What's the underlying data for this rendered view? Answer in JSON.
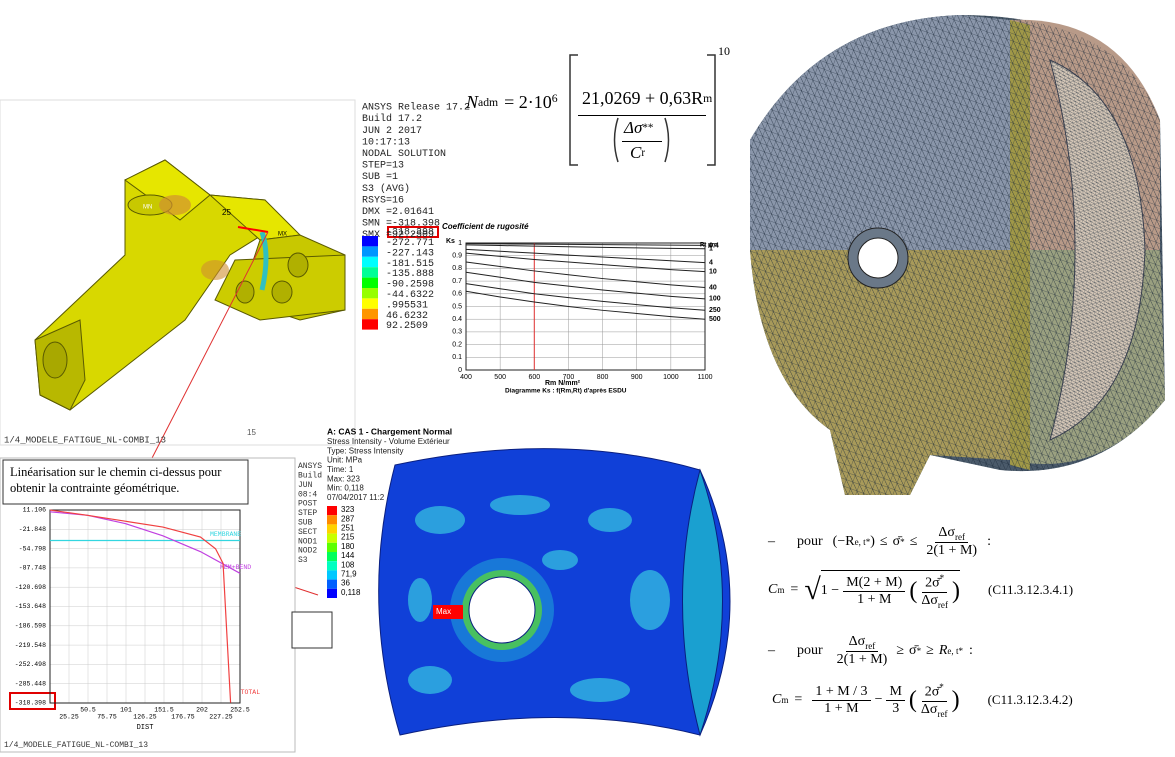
{
  "ansys_plot": {
    "info_lines": [
      "ANSYS Release 17.2",
      "Build 17.2",
      "JUN  2 2017",
      "10:17:13",
      "NODAL SOLUTION",
      "STEP=13",
      "SUB =1",
      "S3       (AVG)",
      "RSYS=16",
      "DMX =2.01641",
      "SMN =-318.398",
      "SMX =92.2509"
    ],
    "legend_colors": [
      "#0000ff",
      "#0096ff",
      "#00ffff",
      "#00ff96",
      "#00ff00",
      "#96ff00",
      "#ffff00",
      "#ff9600",
      "#ff0000"
    ],
    "legend_labels": [
      "-318.398",
      "-272.771",
      "-227.143",
      "-181.515",
      "-135.888",
      "-90.2598",
      "-44.6322",
      ".995531",
      "46.6232",
      "92.2509"
    ],
    "model_labels": [
      "25",
      "MN",
      "MX"
    ],
    "footer": "1/4_MODELE_FATIGUE_NL-COMBI_13",
    "corner_mark": "15"
  },
  "formula_top": {
    "n": "N",
    "n_sub": "adm",
    "eq": "= 2·10",
    "exp": "6",
    "num": "21,0269 + 0,63R",
    "num_sub": "m",
    "den_top": "Δσ",
    "den_sup": "**",
    "den_bottom": "C",
    "den_sub": "r",
    "power": "10"
  },
  "chart_data": [
    {
      "type": "line",
      "title": "Coefficient de rugosité",
      "y_label": "Ks",
      "x_label": "Rm   N/mm²",
      "caption": "Diagramme Ks : f(Rm,Rt) d'après ESDU",
      "legend_title": "Rt μm",
      "x": [
        400,
        500,
        600,
        700,
        800,
        900,
        1000,
        1100
      ],
      "xlim": [
        400,
        1100
      ],
      "xticks": [
        400,
        500,
        600,
        700,
        800,
        900,
        1000,
        1100
      ],
      "ylim": [
        0,
        1
      ],
      "yticks": [
        0,
        0.1,
        0.2,
        0.3,
        0.4,
        0.5,
        0.6,
        0.7,
        0.8,
        0.9,
        1
      ],
      "grid": true,
      "marker_x": 600,
      "marker_color": "#e03030",
      "series": [
        {
          "name": "0.4",
          "color": "#222222",
          "values": [
            0.995,
            0.993,
            0.991,
            0.989,
            0.987,
            0.985,
            0.983,
            0.981
          ]
        },
        {
          "name": "1",
          "color": "#222222",
          "values": [
            0.985,
            0.98,
            0.975,
            0.97,
            0.966,
            0.962,
            0.958,
            0.955
          ]
        },
        {
          "name": "4",
          "color": "#222222",
          "values": [
            0.95,
            0.935,
            0.92,
            0.905,
            0.89,
            0.875,
            0.86,
            0.845
          ]
        },
        {
          "name": "10",
          "color": "#222222",
          "values": [
            0.92,
            0.895,
            0.87,
            0.85,
            0.83,
            0.81,
            0.79,
            0.775
          ]
        },
        {
          "name": "40",
          "color": "#222222",
          "values": [
            0.85,
            0.815,
            0.78,
            0.75,
            0.72,
            0.695,
            0.67,
            0.65
          ]
        },
        {
          "name": "100",
          "color": "#222222",
          "values": [
            0.77,
            0.73,
            0.69,
            0.66,
            0.63,
            0.605,
            0.58,
            0.56
          ]
        },
        {
          "name": "250",
          "color": "#222222",
          "values": [
            0.68,
            0.64,
            0.6,
            0.57,
            0.54,
            0.515,
            0.49,
            0.47
          ]
        },
        {
          "name": "500",
          "color": "#222222",
          "values": [
            0.62,
            0.575,
            0.535,
            0.5,
            0.47,
            0.445,
            0.42,
            0.4
          ]
        }
      ]
    },
    {
      "type": "line",
      "note": "Linéarisation sur le chemin ci-dessus pour obtenir la contrainte géométrique.",
      "x_label": "DIST",
      "side_text": [
        "ANSYS",
        "Build",
        "JUN",
        "08:4",
        "POST",
        "STEP",
        "SUB",
        "SECT",
        "NOD1",
        "NOD2",
        "S3"
      ],
      "footer": "1/4_MODELE_FATIGUE_NL-COMBI_13",
      "xlim": [
        0,
        252.5
      ],
      "xticks": [
        25.25,
        50.5,
        75.75,
        101,
        126.25,
        151.5,
        176.75,
        202,
        227.25,
        252.5
      ],
      "ylim": [
        -318.398,
        11.106
      ],
      "yticks": [
        11.106,
        -21.848,
        -54.798,
        -87.748,
        -120.698,
        -153.648,
        -186.598,
        -219.548,
        -252.498,
        -285.448,
        -318.398
      ],
      "grid": true,
      "series": [
        {
          "name": "MEMBRANE",
          "color": "#33d6e0",
          "x": [
            0,
            252.5
          ],
          "values": [
            -41,
            -41
          ]
        },
        {
          "name": "MEM+BEND",
          "color": "#c040e0",
          "x": [
            0,
            50,
            100,
            150,
            200,
            252.5
          ],
          "values": [
            8,
            2,
            -12,
            -33,
            -60,
            -97
          ]
        },
        {
          "name": "TOTAL",
          "color": "#f04040",
          "x": [
            0,
            50,
            100,
            150,
            200,
            220,
            230,
            235,
            240
          ],
          "values": [
            11,
            2,
            -8,
            -18,
            -35,
            -55,
            -80,
            -200,
            -318
          ]
        }
      ]
    }
  ],
  "workbench": {
    "title": "A: CAS 1 - Chargement Normal",
    "info_lines": [
      "Stress Intensity - Volume Extérieur",
      "Type: Stress Intensity",
      "Unit: MPa",
      "Time: 1",
      "Max: 323",
      "Min: 0,118",
      "07/04/2017 11:2"
    ],
    "legend_colors": [
      "#ff0000",
      "#ff8a00",
      "#ffd200",
      "#c8ff00",
      "#5cff00",
      "#00ff5a",
      "#00ffc0",
      "#00c8ff",
      "#0060ff",
      "#0000ff"
    ],
    "legend_labels": [
      "323",
      "287",
      "251",
      "215",
      "180",
      "144",
      "108",
      "71,9",
      "36",
      "0,118"
    ],
    "max_tag": "Max"
  },
  "rules": {
    "dash": "–",
    "pour": "pour",
    "open": "(−R",
    "re_sub": "e, t*",
    "close": ")",
    "le": "≤",
    "ge": "≥",
    "sigma": "σ̄",
    "star": "*",
    "dsig": "Δσ",
    "ref": "ref",
    "den": "2(1 + M)",
    "colon": ":",
    "r": "R",
    "c": "C",
    "m_sub": "m",
    "eq": "=",
    "one_minus": "1 −",
    "eq1_num": "M(2 + M)",
    "eq1_den": "1 + M",
    "two_sigma": "2σ̄",
    "eq1_ref": "(C11.3.12.3.4.1)",
    "eq2_num": "1 + M / 3",
    "eq2_den": "1 + M",
    "minus": "−",
    "m": "M",
    "three": "3",
    "eq2_ref": "(C11.3.12.3.4.2)"
  }
}
